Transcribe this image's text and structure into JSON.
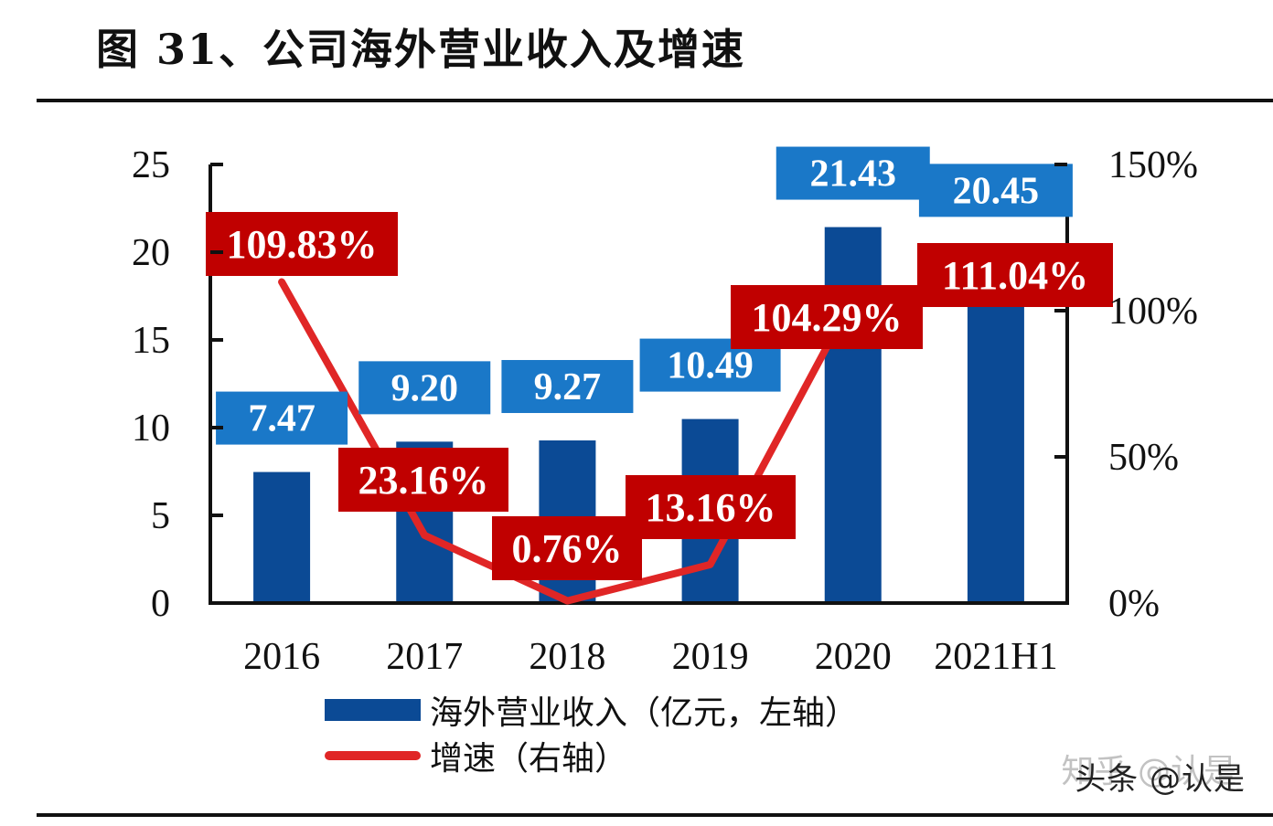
{
  "title": "图 31、公司海外营业收入及增速",
  "chart_data": {
    "type": "bar",
    "title": "图 31、公司海外营业收入及增速",
    "categories": [
      "2016",
      "2017",
      "2018",
      "2019",
      "2020",
      "2021H1"
    ],
    "series": [
      {
        "name": "海外营业收入（亿元，左轴）",
        "type": "bar",
        "axis": "left",
        "color": "#0b4a95",
        "label_color": "#1a78c8",
        "values": [
          7.47,
          9.2,
          9.27,
          10.49,
          21.43,
          20.45
        ],
        "labels": [
          "7.47",
          "9.20",
          "9.27",
          "10.49",
          "21.43",
          "20.45"
        ]
      },
      {
        "name": "增速（右轴）",
        "type": "line",
        "axis": "right",
        "color": "#e02626",
        "label_color": "#c00000",
        "values": [
          109.83,
          23.16,
          0.76,
          13.16,
          104.29,
          111.04
        ],
        "labels": [
          "109.83%",
          "23.16%",
          "0.76%",
          "13.16%",
          "104.29%",
          "111.04%"
        ]
      }
    ],
    "left_axis": {
      "ylim": [
        0,
        25
      ],
      "ticks": [
        0,
        5,
        10,
        15,
        20,
        25
      ],
      "tick_labels": [
        "0",
        "5",
        "10",
        "15",
        "20",
        "25"
      ]
    },
    "right_axis": {
      "ylim": [
        0,
        150
      ],
      "ticks": [
        0,
        50,
        100,
        150
      ],
      "tick_labels": [
        "0%",
        "50%",
        "100%",
        "150%"
      ]
    },
    "xlabel": "",
    "ylabel": "",
    "grid": false,
    "legend_position": "bottom-left"
  },
  "legend": {
    "bar_label": "海外营业收入（亿元，左轴）",
    "line_label": "增速（右轴）"
  },
  "watermark": {
    "primary": "头条 @认是",
    "ghost": "知乎 @认是"
  }
}
